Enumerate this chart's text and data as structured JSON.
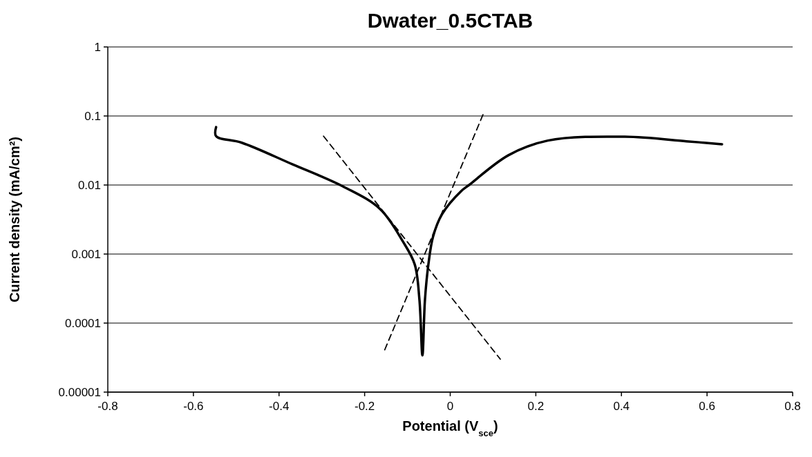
{
  "chart_data": {
    "type": "line",
    "title": "Dwater_0.5CTAB",
    "xlabel": "Potential (V$_{sce}$)",
    "ylabel": "Current density (mA/cm²)",
    "log": "y",
    "grid": "y",
    "marker": "none",
    "xlim": [
      -0.8,
      0.8
    ],
    "xticks": [
      -0.8,
      -0.6,
      -0.4,
      -0.2,
      0,
      0.2,
      0.4,
      0.6,
      0.8
    ],
    "ylim": [
      1e-05,
      1
    ],
    "yticks": [
      {
        "value": 1e-05,
        "label": "0.00001"
      },
      {
        "value": 0.0001,
        "label": "0.0001"
      },
      {
        "value": 0.001,
        "label": "0.001"
      },
      {
        "value": 0.01,
        "label": "0.01"
      },
      {
        "value": 0.1,
        "label": "0.1"
      },
      {
        "value": 1,
        "label": "1"
      }
    ],
    "series": [
      {
        "color": "#000000",
        "line_style": "solid",
        "x": [
          -0.547,
          -0.547,
          -0.487,
          -0.369,
          -0.25,
          -0.164,
          -0.11,
          -0.083,
          -0.072,
          -0.065,
          -0.059,
          -0.051,
          -0.04,
          -0.019,
          0.025,
          0.044,
          0.136,
          0.228,
          0.408,
          0.552,
          0.635
        ],
        "values": [
          0.069,
          0.051,
          0.041,
          0.02,
          0.0095,
          0.0045,
          0.0015,
          0.00071,
          0.00022,
          3.4e-05,
          0.00022,
          0.00071,
          0.0018,
          0.0038,
          0.0081,
          0.01,
          0.027,
          0.044,
          0.05,
          0.043,
          0.039
        ]
      },
      {
        "color": "#000000",
        "line_style": "dashed",
        "x": [
          -0.296,
          0.117
        ],
        "values": [
          0.051,
          3e-05
        ]
      },
      {
        "color": "#000000",
        "line_style": "dashed",
        "x": [
          -0.153,
          0.078
        ],
        "values": [
          4.1e-05,
          0.11
        ]
      }
    ]
  }
}
